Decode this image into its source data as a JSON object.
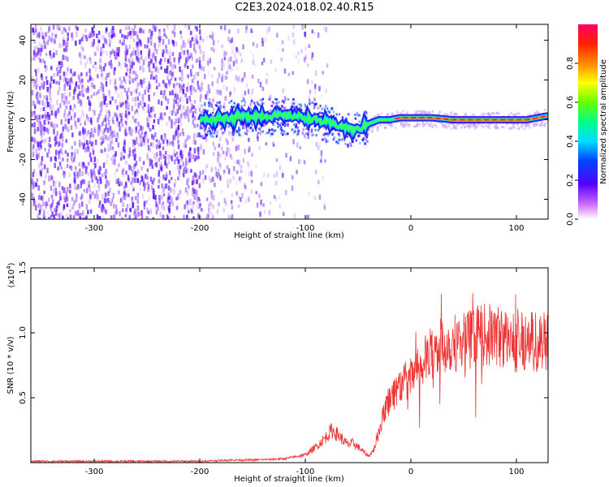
{
  "title": "C2E3.2024.018.02.40.R15",
  "chart_data": [
    {
      "type": "heatmap",
      "title": "C2E3.2024.018.02.40.R15",
      "xlabel": "Height of straight line (km)",
      "ylabel": "Frequency (Hz)",
      "xlim": [
        -360,
        130
      ],
      "ylim": [
        -50,
        48
      ],
      "xticks": [
        -300,
        -200,
        -100,
        0,
        100
      ],
      "yticks": [
        -40,
        -20,
        0,
        20,
        40
      ],
      "xtick_labels": [
        "-300",
        "-200",
        "-100",
        "0",
        "100"
      ],
      "ytick_labels": [
        "-40",
        "-20",
        "0",
        "20",
        "40"
      ],
      "signal_trace": {
        "x": [
          -360,
          -200,
          -150,
          -110,
          -90,
          -75,
          -60,
          -50,
          -40,
          -30,
          -20,
          -10,
          0,
          20,
          40,
          60,
          80,
          100,
          110,
          120,
          130
        ],
        "y": [
          0,
          0,
          2,
          2,
          0,
          -2,
          -4,
          -5,
          -2,
          0,
          0,
          1,
          1,
          1,
          0,
          0,
          0,
          0,
          0,
          1,
          2
        ]
      },
      "colorbar": {
        "label": "Normalized spectral amplitude",
        "range": [
          0,
          1
        ],
        "ticks": [
          0.0,
          0.2,
          0.4,
          0.6,
          0.8
        ],
        "tick_labels": [
          "0.0",
          "0.2",
          "0.4",
          "0.6",
          "0.8"
        ]
      }
    },
    {
      "type": "line",
      "xlabel": "Height of straight line (km)",
      "ylabel": "SNR (10 * v/v)",
      "multiplier_label": "(x10",
      "multiplier_exp": "4",
      "multiplier_close": ")",
      "xlim": [
        -360,
        130
      ],
      "ylim": [
        0,
        1.5
      ],
      "xticks": [
        -300,
        -200,
        -100,
        0,
        100
      ],
      "yticks": [
        0.5,
        1.0,
        1.5
      ],
      "xtick_labels": [
        "-300",
        "-200",
        "-100",
        "0",
        "100"
      ],
      "ytick_labels": [
        "0.5",
        "1.0",
        "1.5"
      ],
      "color": "#ee3333",
      "envelope": {
        "x": [
          -360,
          -200,
          -170,
          -150,
          -120,
          -100,
          -90,
          -80,
          -75,
          -70,
          -60,
          -55,
          -50,
          -40,
          -35,
          -30,
          -25,
          -20,
          -10,
          0,
          10,
          20,
          30,
          40,
          50,
          60,
          70,
          80,
          90,
          100,
          110,
          120,
          130
        ],
        "y": [
          0.01,
          0.01,
          0.02,
          0.02,
          0.03,
          0.06,
          0.12,
          0.2,
          0.25,
          0.22,
          0.14,
          0.15,
          0.12,
          0.05,
          0.1,
          0.25,
          0.4,
          0.5,
          0.6,
          0.65,
          0.75,
          0.85,
          0.9,
          0.92,
          0.95,
          0.95,
          0.98,
          0.98,
          0.95,
          0.92,
          0.95,
          0.93,
          0.95
        ]
      }
    }
  ]
}
